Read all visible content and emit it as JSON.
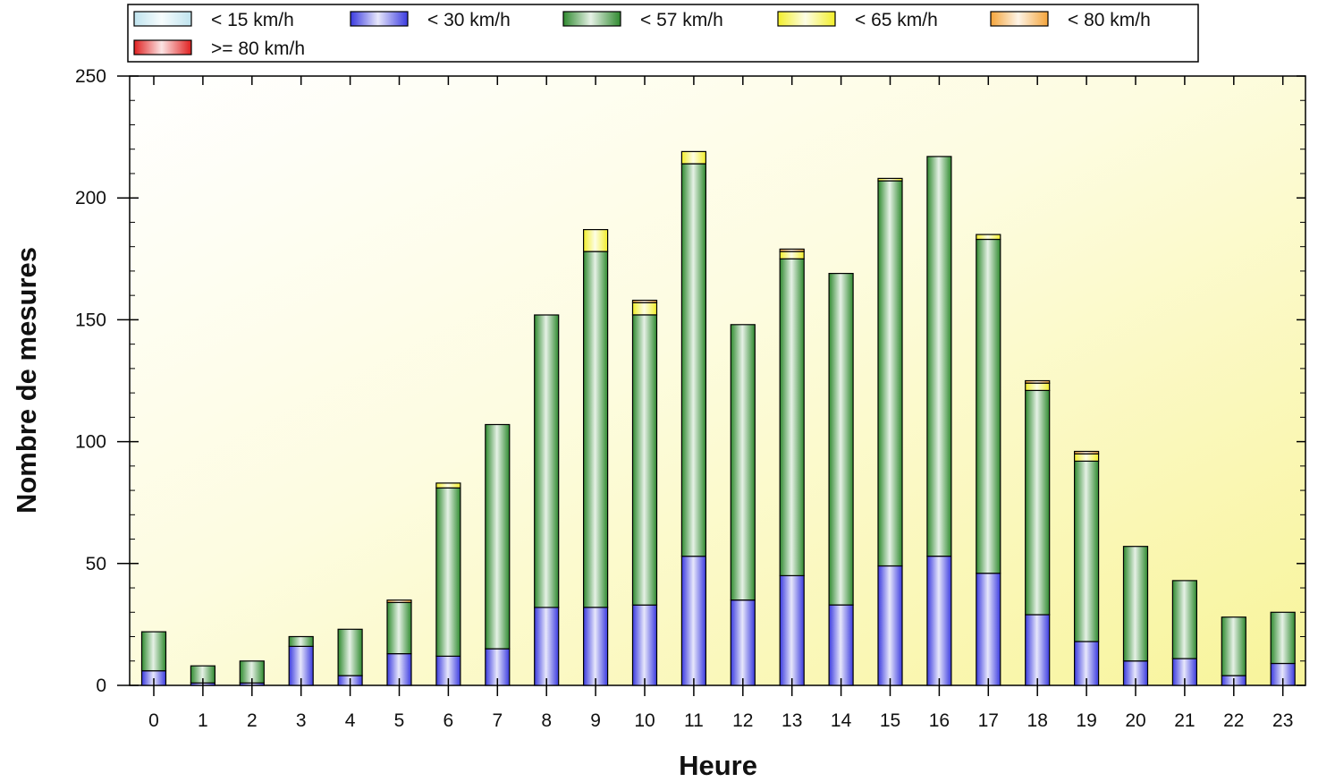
{
  "chart_data": {
    "type": "bar",
    "stacked": true,
    "title": "",
    "xlabel": "Heure",
    "ylabel": "Nombre de mesures",
    "ylim": [
      0,
      250
    ],
    "yticks": [
      0,
      50,
      100,
      150,
      200,
      250
    ],
    "grid": false,
    "legend_position": "top",
    "categories": [
      "0",
      "1",
      "2",
      "3",
      "4",
      "5",
      "6",
      "7",
      "8",
      "9",
      "10",
      "11",
      "12",
      "13",
      "14",
      "15",
      "16",
      "17",
      "18",
      "19",
      "20",
      "21",
      "22",
      "23"
    ],
    "series": [
      {
        "name": "< 15 km/h",
        "color": "#bfe3ee",
        "values": [
          0,
          0,
          0,
          0,
          0,
          0,
          0,
          0,
          0,
          0,
          0,
          0,
          0,
          0,
          0,
          0,
          0,
          0,
          0,
          0,
          0,
          0,
          0,
          0
        ]
      },
      {
        "name": "< 30 km/h",
        "color": "#3a3adf",
        "values": [
          6,
          1,
          1,
          16,
          4,
          13,
          12,
          15,
          32,
          32,
          33,
          53,
          35,
          45,
          33,
          49,
          53,
          46,
          29,
          18,
          10,
          11,
          4,
          9
        ]
      },
      {
        "name": "< 57 km/h",
        "color": "#2f8a2f",
        "values": [
          16,
          7,
          9,
          4,
          19,
          21,
          69,
          92,
          120,
          146,
          119,
          161,
          113,
          130,
          136,
          158,
          164,
          137,
          92,
          74,
          47,
          32,
          24,
          21
        ]
      },
      {
        "name": "< 65 km/h",
        "color": "#f2ee2a",
        "values": [
          0,
          0,
          0,
          0,
          0,
          0,
          2,
          0,
          0,
          9,
          5,
          5,
          0,
          3,
          0,
          1,
          0,
          2,
          3,
          3,
          0,
          0,
          0,
          0
        ]
      },
      {
        "name": "< 80 km/h",
        "color": "#f4a43a",
        "values": [
          0,
          0,
          0,
          0,
          0,
          1,
          0,
          0,
          0,
          0,
          1,
          0,
          0,
          1,
          0,
          0,
          0,
          0,
          1,
          1,
          0,
          0,
          0,
          0
        ]
      },
      {
        "name": ">= 80 km/h",
        "color": "#e02020",
        "values": [
          0,
          0,
          0,
          0,
          0,
          0,
          0,
          0,
          0,
          0,
          0,
          0,
          0,
          0,
          0,
          0,
          0,
          0,
          0,
          0,
          0,
          0,
          0,
          0
        ]
      }
    ]
  }
}
